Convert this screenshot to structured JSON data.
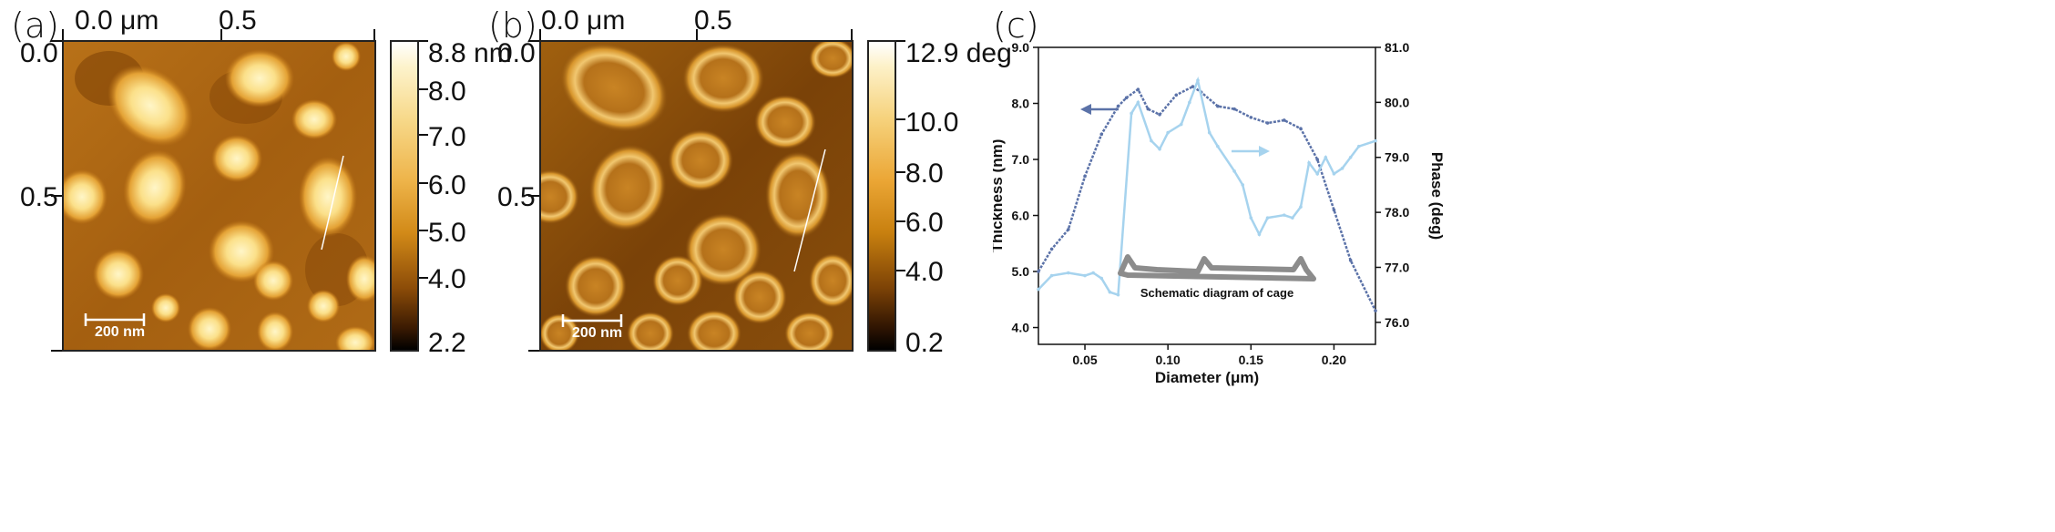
{
  "panels": {
    "a": {
      "label": "(a)",
      "top_ticks": [
        "0.0 μm",
        "0.5"
      ],
      "left_ticks": [
        "0.0",
        "0.5"
      ],
      "scalebar": "200 nm",
      "colorbar": {
        "max_label": "8.8 nm",
        "ticks": [
          "8.0",
          "7.0",
          "6.0",
          "5.0",
          "4.0",
          "2.2"
        ]
      }
    },
    "b": {
      "label": "(b)",
      "top_ticks": [
        "0.0 μm",
        "0.5"
      ],
      "left_ticks": [
        "0.0",
        "0.5"
      ],
      "scalebar": "200 nm",
      "colorbar": {
        "max_label": "12.9 deg",
        "ticks": [
          "10.0",
          "8.0",
          "6.0",
          "4.0",
          "0.2"
        ]
      }
    },
    "c": {
      "label": "(c)"
    }
  },
  "chart_data": {
    "type": "line",
    "title": "",
    "xlabel": "Diameter (μm)",
    "ylabel": "Thickness (nm)",
    "y2label": "Phase (deg)",
    "xlim": [
      0.022,
      0.225
    ],
    "ylim": [
      3.7,
      9.0
    ],
    "y2lim": [
      75.6,
      81.0
    ],
    "x_ticks": [
      "0.05",
      "0.10",
      "0.15",
      "0.20"
    ],
    "y_ticks": [
      "4.0",
      "5.0",
      "6.0",
      "7.0",
      "8.0",
      "9.0"
    ],
    "y2_ticks": [
      "76.0",
      "77.0",
      "78.0",
      "79.0",
      "80.0",
      "81.0"
    ],
    "annotation": "Schematic diagram of cage",
    "series": [
      {
        "name": "Thickness",
        "axis": "left",
        "color": "#5b72a8",
        "x": [
          0.022,
          0.03,
          0.04,
          0.05,
          0.06,
          0.07,
          0.075,
          0.082,
          0.088,
          0.095,
          0.105,
          0.115,
          0.12,
          0.13,
          0.14,
          0.15,
          0.16,
          0.17,
          0.18,
          0.19,
          0.2,
          0.21,
          0.225
        ],
        "values": [
          5.0,
          5.4,
          5.75,
          6.7,
          7.45,
          7.95,
          8.1,
          8.25,
          7.9,
          7.8,
          8.15,
          8.3,
          8.2,
          7.95,
          7.9,
          7.75,
          7.65,
          7.7,
          7.55,
          7.0,
          6.1,
          5.2,
          4.3
        ]
      },
      {
        "name": "Phase",
        "axis": "right",
        "color": "#a6d3ee",
        "x": [
          0.022,
          0.03,
          0.04,
          0.05,
          0.055,
          0.06,
          0.065,
          0.07,
          0.078,
          0.082,
          0.09,
          0.095,
          0.1,
          0.108,
          0.113,
          0.118,
          0.125,
          0.13,
          0.14,
          0.145,
          0.15,
          0.155,
          0.16,
          0.17,
          0.175,
          0.18,
          0.185,
          0.19,
          0.195,
          0.2,
          0.205,
          0.21,
          0.215,
          0.225
        ],
        "values": [
          76.6,
          76.85,
          76.9,
          76.85,
          76.9,
          76.8,
          76.55,
          76.5,
          79.8,
          80.0,
          79.3,
          79.15,
          79.45,
          79.6,
          80.0,
          80.4,
          79.45,
          79.2,
          78.75,
          78.5,
          77.9,
          77.6,
          77.9,
          77.95,
          77.9,
          78.1,
          78.9,
          78.7,
          79.0,
          78.7,
          78.8,
          79.0,
          79.2,
          79.3
        ]
      }
    ]
  }
}
